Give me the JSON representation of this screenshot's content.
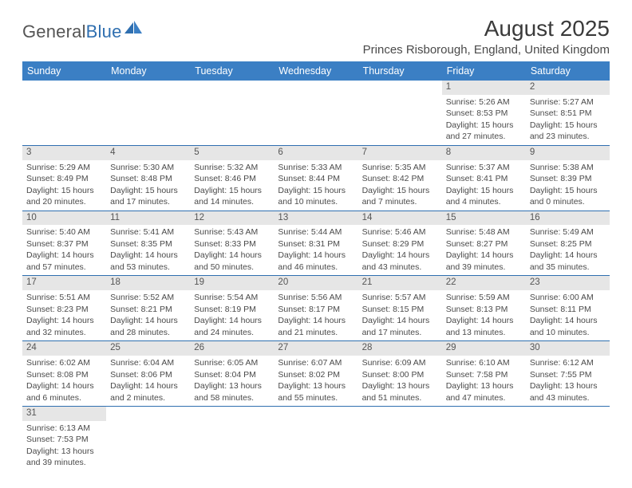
{
  "logo": {
    "word1": "General",
    "word2": "Blue"
  },
  "title": "August 2025",
  "location": "Princes Risborough, England, United Kingdom",
  "colors": {
    "header_bg": "#3b7fc4",
    "header_text": "#ffffff",
    "rule": "#2f6fb0",
    "daynum_bg": "#e6e6e6",
    "text": "#4a4a4a",
    "logo_blue": "#2f6fb0"
  },
  "typography": {
    "title_fontsize": 28,
    "location_fontsize": 15,
    "dayheader_fontsize": 12.5,
    "cell_fontsize": 10.5
  },
  "day_headers": [
    "Sunday",
    "Monday",
    "Tuesday",
    "Wednesday",
    "Thursday",
    "Friday",
    "Saturday"
  ],
  "weeks": [
    [
      null,
      null,
      null,
      null,
      null,
      {
        "n": "1",
        "sr": "Sunrise: 5:26 AM",
        "ss": "Sunset: 8:53 PM",
        "dl1": "Daylight: 15 hours",
        "dl2": "and 27 minutes."
      },
      {
        "n": "2",
        "sr": "Sunrise: 5:27 AM",
        "ss": "Sunset: 8:51 PM",
        "dl1": "Daylight: 15 hours",
        "dl2": "and 23 minutes."
      }
    ],
    [
      {
        "n": "3",
        "sr": "Sunrise: 5:29 AM",
        "ss": "Sunset: 8:49 PM",
        "dl1": "Daylight: 15 hours",
        "dl2": "and 20 minutes."
      },
      {
        "n": "4",
        "sr": "Sunrise: 5:30 AM",
        "ss": "Sunset: 8:48 PM",
        "dl1": "Daylight: 15 hours",
        "dl2": "and 17 minutes."
      },
      {
        "n": "5",
        "sr": "Sunrise: 5:32 AM",
        "ss": "Sunset: 8:46 PM",
        "dl1": "Daylight: 15 hours",
        "dl2": "and 14 minutes."
      },
      {
        "n": "6",
        "sr": "Sunrise: 5:33 AM",
        "ss": "Sunset: 8:44 PM",
        "dl1": "Daylight: 15 hours",
        "dl2": "and 10 minutes."
      },
      {
        "n": "7",
        "sr": "Sunrise: 5:35 AM",
        "ss": "Sunset: 8:42 PM",
        "dl1": "Daylight: 15 hours",
        "dl2": "and 7 minutes."
      },
      {
        "n": "8",
        "sr": "Sunrise: 5:37 AM",
        "ss": "Sunset: 8:41 PM",
        "dl1": "Daylight: 15 hours",
        "dl2": "and 4 minutes."
      },
      {
        "n": "9",
        "sr": "Sunrise: 5:38 AM",
        "ss": "Sunset: 8:39 PM",
        "dl1": "Daylight: 15 hours",
        "dl2": "and 0 minutes."
      }
    ],
    [
      {
        "n": "10",
        "sr": "Sunrise: 5:40 AM",
        "ss": "Sunset: 8:37 PM",
        "dl1": "Daylight: 14 hours",
        "dl2": "and 57 minutes."
      },
      {
        "n": "11",
        "sr": "Sunrise: 5:41 AM",
        "ss": "Sunset: 8:35 PM",
        "dl1": "Daylight: 14 hours",
        "dl2": "and 53 minutes."
      },
      {
        "n": "12",
        "sr": "Sunrise: 5:43 AM",
        "ss": "Sunset: 8:33 PM",
        "dl1": "Daylight: 14 hours",
        "dl2": "and 50 minutes."
      },
      {
        "n": "13",
        "sr": "Sunrise: 5:44 AM",
        "ss": "Sunset: 8:31 PM",
        "dl1": "Daylight: 14 hours",
        "dl2": "and 46 minutes."
      },
      {
        "n": "14",
        "sr": "Sunrise: 5:46 AM",
        "ss": "Sunset: 8:29 PM",
        "dl1": "Daylight: 14 hours",
        "dl2": "and 43 minutes."
      },
      {
        "n": "15",
        "sr": "Sunrise: 5:48 AM",
        "ss": "Sunset: 8:27 PM",
        "dl1": "Daylight: 14 hours",
        "dl2": "and 39 minutes."
      },
      {
        "n": "16",
        "sr": "Sunrise: 5:49 AM",
        "ss": "Sunset: 8:25 PM",
        "dl1": "Daylight: 14 hours",
        "dl2": "and 35 minutes."
      }
    ],
    [
      {
        "n": "17",
        "sr": "Sunrise: 5:51 AM",
        "ss": "Sunset: 8:23 PM",
        "dl1": "Daylight: 14 hours",
        "dl2": "and 32 minutes."
      },
      {
        "n": "18",
        "sr": "Sunrise: 5:52 AM",
        "ss": "Sunset: 8:21 PM",
        "dl1": "Daylight: 14 hours",
        "dl2": "and 28 minutes."
      },
      {
        "n": "19",
        "sr": "Sunrise: 5:54 AM",
        "ss": "Sunset: 8:19 PM",
        "dl1": "Daylight: 14 hours",
        "dl2": "and 24 minutes."
      },
      {
        "n": "20",
        "sr": "Sunrise: 5:56 AM",
        "ss": "Sunset: 8:17 PM",
        "dl1": "Daylight: 14 hours",
        "dl2": "and 21 minutes."
      },
      {
        "n": "21",
        "sr": "Sunrise: 5:57 AM",
        "ss": "Sunset: 8:15 PM",
        "dl1": "Daylight: 14 hours",
        "dl2": "and 17 minutes."
      },
      {
        "n": "22",
        "sr": "Sunrise: 5:59 AM",
        "ss": "Sunset: 8:13 PM",
        "dl1": "Daylight: 14 hours",
        "dl2": "and 13 minutes."
      },
      {
        "n": "23",
        "sr": "Sunrise: 6:00 AM",
        "ss": "Sunset: 8:11 PM",
        "dl1": "Daylight: 14 hours",
        "dl2": "and 10 minutes."
      }
    ],
    [
      {
        "n": "24",
        "sr": "Sunrise: 6:02 AM",
        "ss": "Sunset: 8:08 PM",
        "dl1": "Daylight: 14 hours",
        "dl2": "and 6 minutes."
      },
      {
        "n": "25",
        "sr": "Sunrise: 6:04 AM",
        "ss": "Sunset: 8:06 PM",
        "dl1": "Daylight: 14 hours",
        "dl2": "and 2 minutes."
      },
      {
        "n": "26",
        "sr": "Sunrise: 6:05 AM",
        "ss": "Sunset: 8:04 PM",
        "dl1": "Daylight: 13 hours",
        "dl2": "and 58 minutes."
      },
      {
        "n": "27",
        "sr": "Sunrise: 6:07 AM",
        "ss": "Sunset: 8:02 PM",
        "dl1": "Daylight: 13 hours",
        "dl2": "and 55 minutes."
      },
      {
        "n": "28",
        "sr": "Sunrise: 6:09 AM",
        "ss": "Sunset: 8:00 PM",
        "dl1": "Daylight: 13 hours",
        "dl2": "and 51 minutes."
      },
      {
        "n": "29",
        "sr": "Sunrise: 6:10 AM",
        "ss": "Sunset: 7:58 PM",
        "dl1": "Daylight: 13 hours",
        "dl2": "and 47 minutes."
      },
      {
        "n": "30",
        "sr": "Sunrise: 6:12 AM",
        "ss": "Sunset: 7:55 PM",
        "dl1": "Daylight: 13 hours",
        "dl2": "and 43 minutes."
      }
    ],
    [
      {
        "n": "31",
        "sr": "Sunrise: 6:13 AM",
        "ss": "Sunset: 7:53 PM",
        "dl1": "Daylight: 13 hours",
        "dl2": "and 39 minutes."
      },
      null,
      null,
      null,
      null,
      null,
      null
    ]
  ]
}
